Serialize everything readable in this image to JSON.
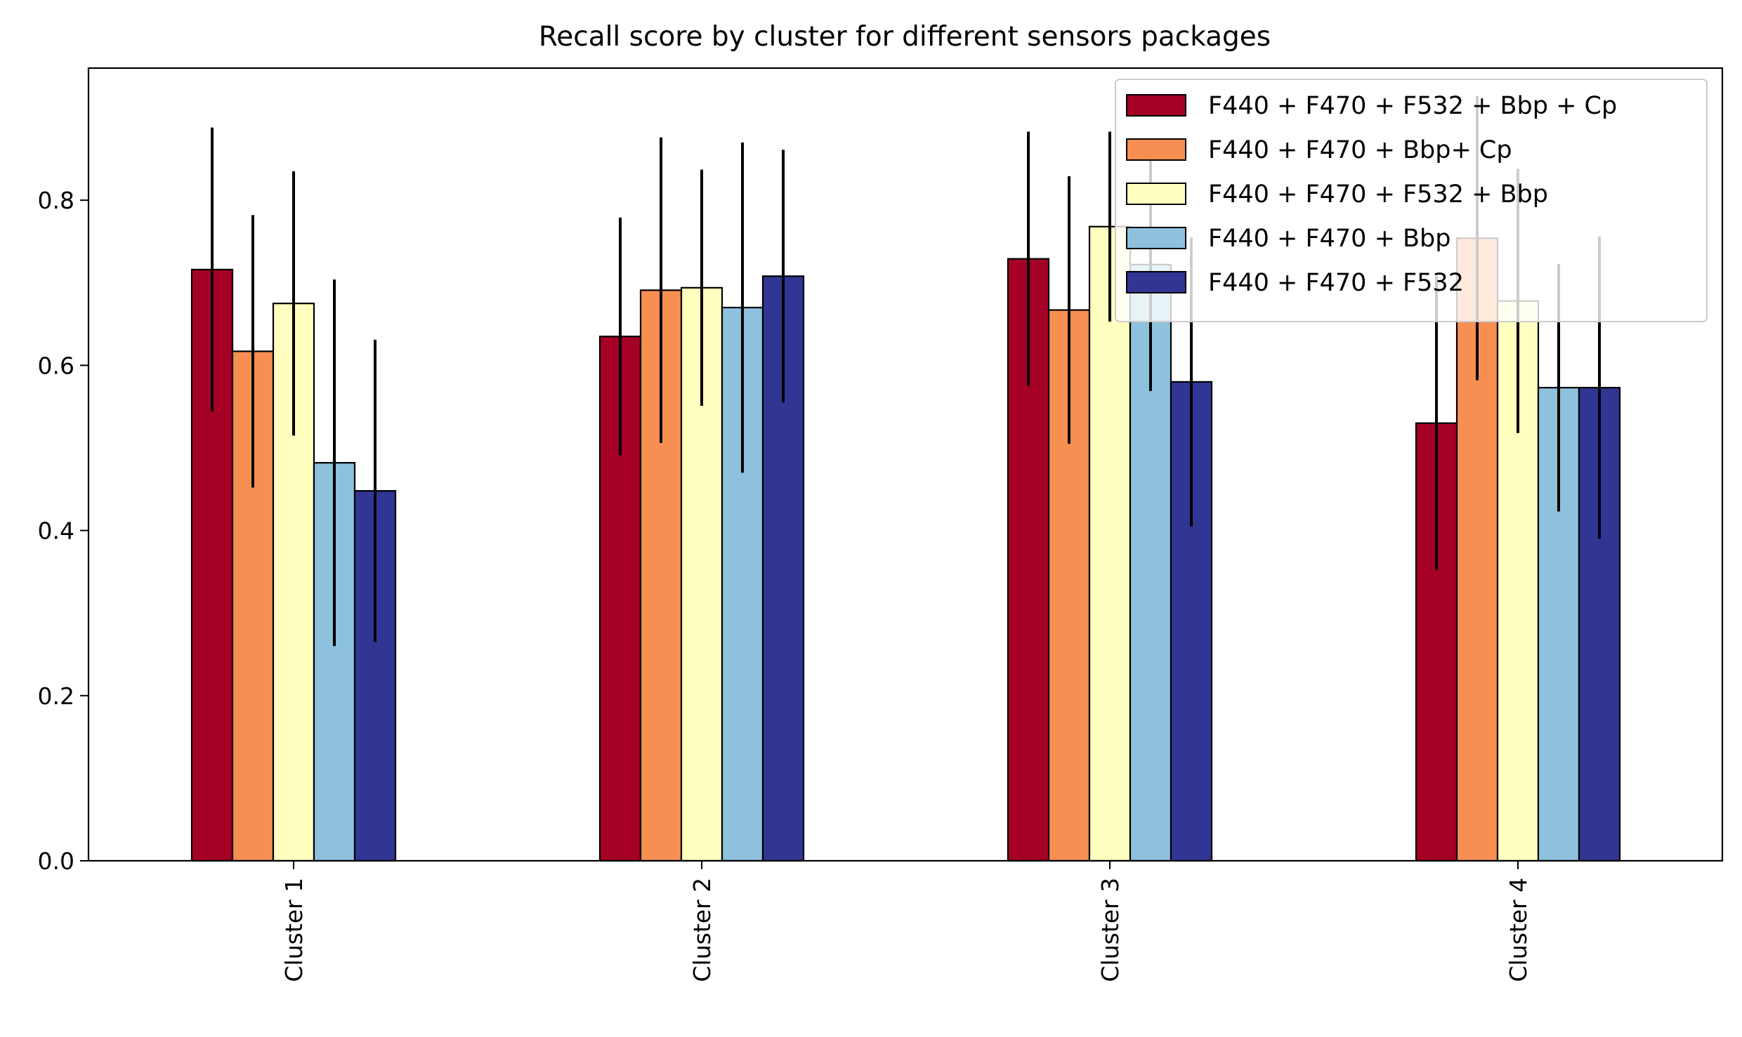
{
  "chart_data": {
    "type": "bar",
    "title": "Recall score by cluster for different sensors packages",
    "xlabel": "",
    "ylabel": "",
    "categories": [
      "Cluster 1",
      "Cluster 2",
      "Cluster 3",
      "Cluster 4"
    ],
    "ylim": [
      0,
      0.96
    ],
    "yticks": [
      "0.0",
      "0.2",
      "0.4",
      "0.6",
      "0.8"
    ],
    "grid": false,
    "legend_position": "top-right",
    "series": [
      {
        "name": "F440 + F470 + F532 + Bbp + Cp",
        "color": "#a50026",
        "values": [
          0.716,
          0.635,
          0.729,
          0.53
        ],
        "errors": [
          0.172,
          0.144,
          0.154,
          0.178
        ]
      },
      {
        "name": "F440 + F470 + Bbp+ Cp",
        "color": "#f88f52",
        "values": [
          0.617,
          0.691,
          0.667,
          0.754
        ],
        "errors": [
          0.165,
          0.185,
          0.162,
          0.172
        ]
      },
      {
        "name": "F440 + F470 + F532 + Bbp",
        "color": "#ffffbf",
        "values": [
          0.675,
          0.694,
          0.768,
          0.678
        ],
        "errors": [
          0.16,
          0.143,
          0.115,
          0.16
        ]
      },
      {
        "name": "F440 + F470 + Bbp",
        "color": "#8ec1dd",
        "values": [
          0.482,
          0.67,
          0.722,
          0.573
        ],
        "errors": [
          0.222,
          0.2,
          0.153,
          0.15
        ]
      },
      {
        "name": "F440 + F470 + F532",
        "color": "#313695",
        "values": [
          0.448,
          0.708,
          0.58,
          0.573
        ],
        "errors": [
          0.183,
          0.153,
          0.175,
          0.183
        ]
      }
    ]
  }
}
